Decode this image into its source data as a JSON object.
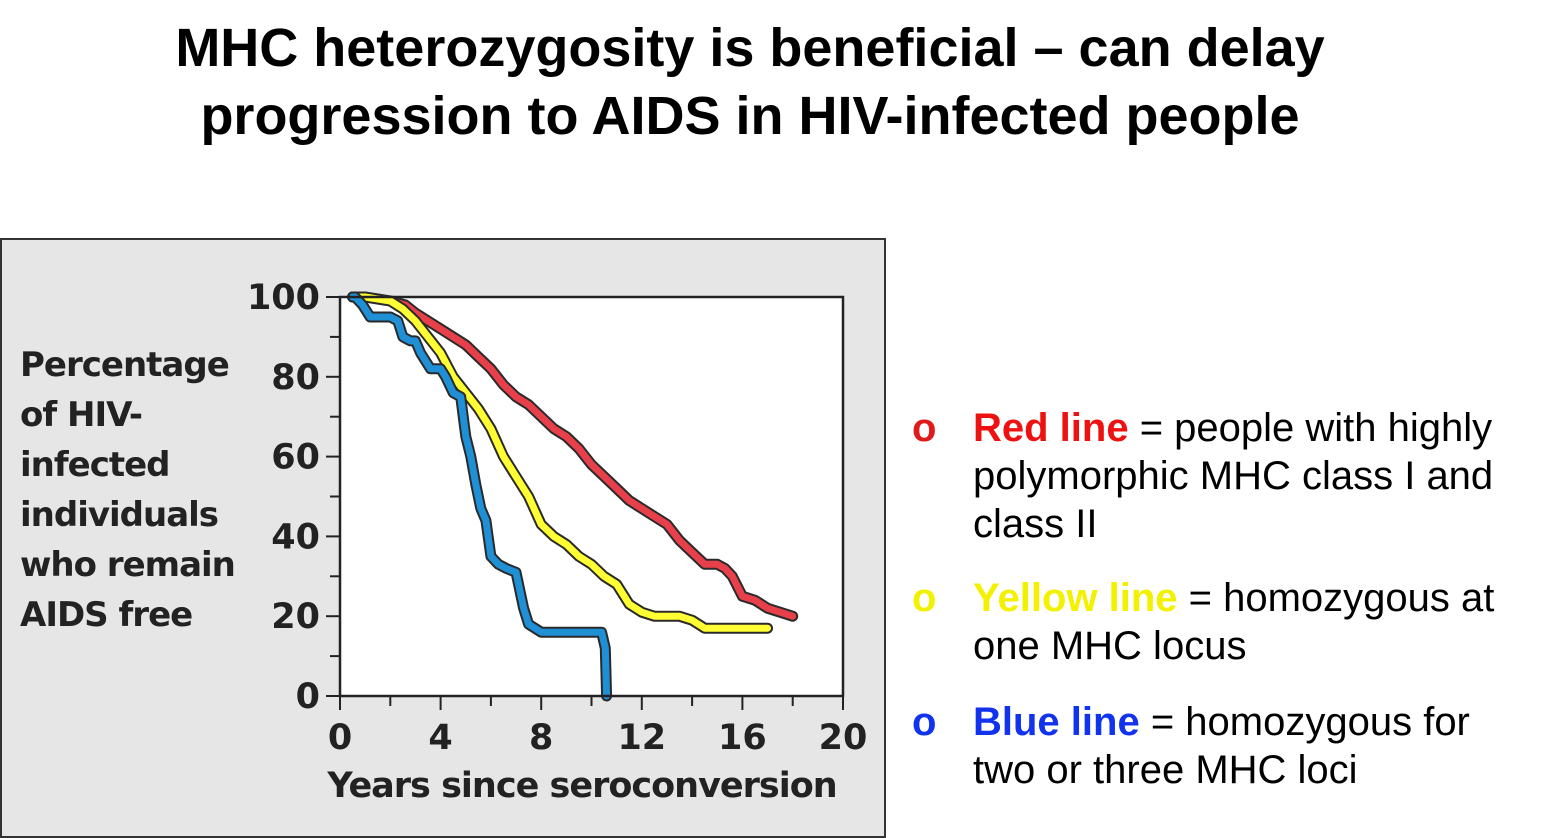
{
  "slide": {
    "title_line1": "MHC heterozygosity is beneficial – can delay",
    "title_line2": "progression to AIDS in HIV-infected people"
  },
  "chart_data": {
    "type": "line",
    "ylabel_lines": [
      "Percentage",
      "of HIV-",
      "infected",
      "individuals",
      "who remain",
      "AIDS free"
    ],
    "xlabel": "Years since seroconversion",
    "xlim": [
      0,
      20
    ],
    "ylim": [
      0,
      100
    ],
    "x_ticks": [
      0,
      4,
      8,
      12,
      16,
      20
    ],
    "y_ticks": [
      0,
      20,
      40,
      60,
      80,
      100
    ],
    "x_minor_step": 2,
    "y_minor_step": 10,
    "grid": false,
    "series": [
      {
        "color": "#e8404a",
        "x": [
          0.5,
          1,
          2,
          2.6,
          3,
          4,
          4.5,
          5,
          5.5,
          6,
          6.5,
          7,
          7.5,
          8,
          8.5,
          9,
          9.5,
          10,
          10.5,
          11,
          11.5,
          12,
          12.5,
          13,
          13.5,
          14,
          14.5,
          15,
          15.3,
          15.6,
          16,
          16.5,
          17,
          17.5,
          18
        ],
        "y": [
          100,
          100,
          99,
          98,
          96,
          92,
          90,
          88,
          85,
          82,
          78,
          75,
          73,
          70,
          67,
          65,
          62,
          58,
          55,
          52,
          49,
          47,
          45,
          43,
          39,
          36,
          33,
          33,
          32,
          30,
          25,
          24,
          22,
          21,
          20
        ]
      },
      {
        "color": "#ffff33",
        "x": [
          0.5,
          1,
          2,
          2.5,
          3,
          3.5,
          4,
          4.5,
          5,
          5.5,
          6,
          6.5,
          7,
          7.5,
          8,
          8.5,
          9,
          9.5,
          10,
          10.5,
          11,
          11.5,
          12,
          12.5,
          13,
          13.5,
          14,
          14.5,
          15,
          16,
          17
        ],
        "y": [
          100,
          100,
          99,
          97,
          94,
          90,
          86,
          80,
          76,
          72,
          67,
          60,
          55,
          50,
          43,
          40,
          38,
          35,
          33,
          30,
          28,
          23,
          21,
          20,
          20,
          20,
          19,
          17,
          17,
          17,
          17
        ]
      },
      {
        "color": "#1f8fd6",
        "x": [
          0.5,
          0.6,
          0.9,
          1.2,
          2,
          2.3,
          2.5,
          2.8,
          3,
          3.2,
          3.6,
          4,
          4.2,
          4.5,
          4.8,
          5,
          5.2,
          5.4,
          5.6,
          5.8,
          6,
          6.3,
          6.6,
          7,
          7.3,
          7.5,
          8,
          9,
          10,
          10.4,
          10.55,
          10.6
        ],
        "y": [
          100,
          100,
          98,
          95,
          95,
          94,
          90,
          89,
          89,
          86,
          82,
          82,
          80,
          76,
          75,
          65,
          60,
          53,
          47,
          44,
          35,
          33,
          32,
          31,
          22,
          18,
          16,
          16,
          16,
          16,
          12,
          0
        ]
      }
    ]
  },
  "legend": [
    {
      "bullet": "o",
      "name": "Red line",
      "desc": " = people with highly polymorphic MHC class I and class II",
      "color": "#ee1111"
    },
    {
      "bullet": "o",
      "name": "Yellow line",
      "desc": " = homozygous at one MHC locus",
      "color": "#f2f200"
    },
    {
      "bullet": "o",
      "name": "Blue line",
      "desc": " = homozygous for two or three MHC loci",
      "color": "#1133ee"
    }
  ]
}
